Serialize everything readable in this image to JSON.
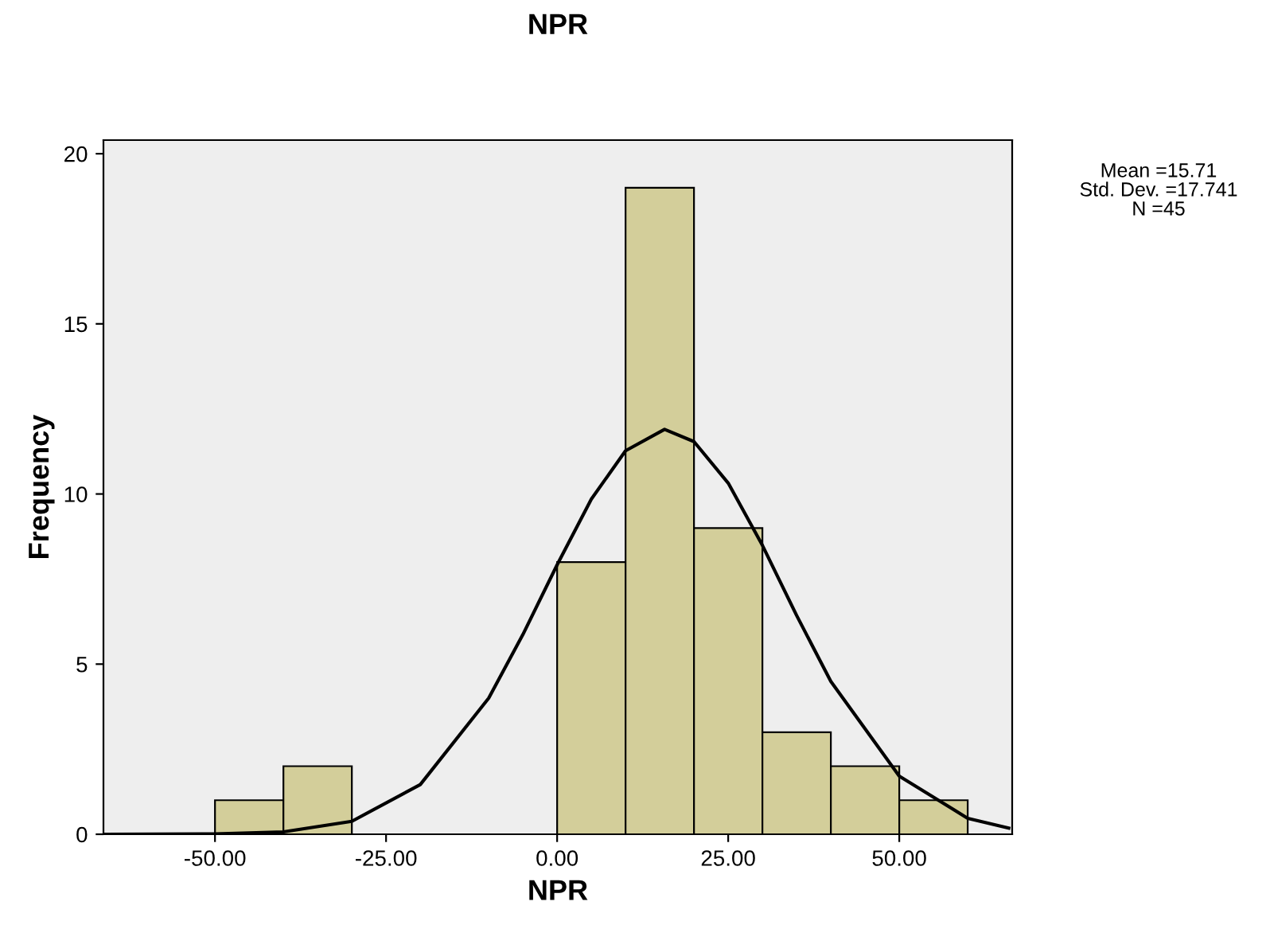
{
  "chart_data": {
    "type": "histogram",
    "title": "NPR",
    "xlabel": "NPR",
    "ylabel": "Frequency",
    "bins": [
      -50,
      -40,
      -30,
      -20,
      -10,
      0,
      10,
      20,
      30,
      40,
      50,
      60
    ],
    "values": [
      1,
      2,
      0,
      0,
      0,
      8,
      19,
      9,
      3,
      2,
      1
    ],
    "color": "#d3ce9a",
    "series": [
      {
        "type": "line",
        "color": "#000000",
        "x": [
          -66,
          -50,
          -40,
          -30,
          -20,
          -10,
          -5,
          0,
          5,
          10,
          15.7,
          20,
          25,
          30,
          35,
          40,
          50,
          60,
          66
        ],
        "values": [
          0.0,
          0.01,
          0.07,
          0.38,
          1.46,
          4.0,
          5.87,
          7.92,
          9.85,
          11.27,
          11.9,
          11.54,
          10.32,
          8.49,
          6.43,
          4.49,
          1.71,
          0.47,
          0.18
        ]
      }
    ],
    "xlim": [
      -66.3,
      66.5
    ],
    "ylim": [
      0,
      20.4
    ],
    "xticks": [
      {
        "value": -50,
        "label": "-50.00"
      },
      {
        "value": -25,
        "label": "-25.00"
      },
      {
        "value": 0,
        "label": "0.00"
      },
      {
        "value": 25,
        "label": "25.00"
      },
      {
        "value": 50,
        "label": "50.00"
      }
    ],
    "yticks": [
      0,
      5,
      10,
      15,
      20
    ],
    "annotations": [
      "Mean =15.71",
      "Std. Dev. =17.741",
      "N =45"
    ]
  }
}
